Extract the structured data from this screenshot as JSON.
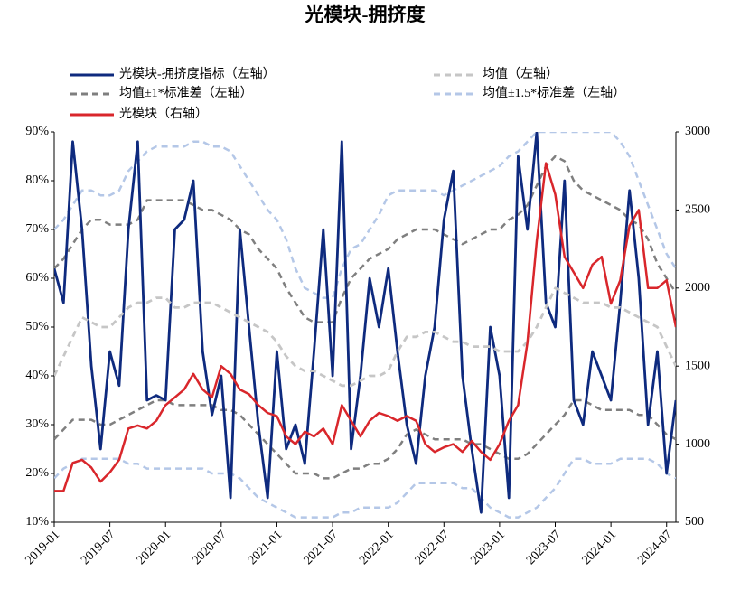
{
  "chart_data": {
    "type": "line",
    "title": "光模块-拥挤度",
    "x": [
      "2019-01",
      "2019-02",
      "2019-03",
      "2019-04",
      "2019-05",
      "2019-06",
      "2019-07",
      "2019-08",
      "2019-09",
      "2019-10",
      "2019-11",
      "2019-12",
      "2020-01",
      "2020-02",
      "2020-03",
      "2020-04",
      "2020-05",
      "2020-06",
      "2020-07",
      "2020-08",
      "2020-09",
      "2020-10",
      "2020-11",
      "2020-12",
      "2021-01",
      "2021-02",
      "2021-03",
      "2021-04",
      "2021-05",
      "2021-06",
      "2021-07",
      "2021-08",
      "2021-09",
      "2021-10",
      "2021-11",
      "2021-12",
      "2022-01",
      "2022-02",
      "2022-03",
      "2022-04",
      "2022-05",
      "2022-06",
      "2022-07",
      "2022-08",
      "2022-09",
      "2022-10",
      "2022-11",
      "2022-12",
      "2023-01",
      "2023-02",
      "2023-03",
      "2023-04",
      "2023-05",
      "2023-06",
      "2023-07",
      "2023-08",
      "2023-09",
      "2023-10",
      "2023-11",
      "2023-12",
      "2024-01",
      "2024-02",
      "2024-03",
      "2024-04",
      "2024-05",
      "2024-06",
      "2024-07",
      "2024-08"
    ],
    "xticks": [
      "2019-01",
      "2019-07",
      "2020-01",
      "2020-07",
      "2021-01",
      "2021-07",
      "2022-01",
      "2022-07",
      "2023-01",
      "2023-07",
      "2024-01",
      "2024-07"
    ],
    "ylim": [
      10,
      90
    ],
    "yticks": [
      {
        "value": 10,
        "label": "10%"
      },
      {
        "value": 20,
        "label": "20%"
      },
      {
        "value": 30,
        "label": "30%"
      },
      {
        "value": 40,
        "label": "40%"
      },
      {
        "value": 50,
        "label": "50%"
      },
      {
        "value": 60,
        "label": "60%"
      },
      {
        "value": 70,
        "label": "70%"
      },
      {
        "value": 80,
        "label": "80%"
      },
      {
        "value": 90,
        "label": "90%"
      }
    ],
    "y2lim": [
      500,
      3000
    ],
    "y2ticks": [
      500,
      1000,
      1500,
      2000,
      2500,
      3000
    ],
    "series": [
      {
        "name": "光模块-拥挤度指标（左轴）",
        "color": "#0e2a7e",
        "dash": "none",
        "values": [
          62,
          55,
          88,
          70,
          42,
          25,
          45,
          38,
          70,
          88,
          35,
          36,
          35,
          70,
          72,
          80,
          45,
          32,
          40,
          15,
          70,
          50,
          30,
          15,
          45,
          25,
          30,
          22,
          45,
          70,
          40,
          88,
          25,
          40,
          60,
          50,
          62,
          45,
          30,
          22,
          40,
          50,
          72,
          82,
          40,
          25,
          12,
          50,
          40,
          15,
          85,
          70,
          90,
          55,
          50,
          80,
          35,
          30,
          45,
          40,
          35,
          55,
          78,
          60,
          30,
          45,
          20,
          35
        ]
      },
      {
        "name": "均值（左轴）",
        "color": "#c6c6c6",
        "dash": "7 5",
        "values": [
          40,
          44,
          48,
          52,
          51,
          50,
          50,
          52,
          54,
          55,
          55,
          56,
          56,
          54,
          54,
          55,
          55,
          55,
          54,
          53,
          52,
          51,
          50,
          49,
          47,
          44,
          42,
          41,
          41,
          40,
          39,
          38,
          38,
          39,
          40,
          40,
          41,
          45,
          48,
          48,
          49,
          49,
          48,
          47,
          47,
          46,
          46,
          46,
          45,
          45,
          45,
          47,
          50,
          54,
          58,
          57,
          56,
          55,
          55,
          55,
          54,
          54,
          53,
          52,
          51,
          50,
          46,
          42
        ]
      },
      {
        "name": "光模块（右轴）",
        "color": "#d9262b",
        "dash": "none",
        "axis": "y2",
        "values": [
          700,
          700,
          880,
          900,
          850,
          760,
          820,
          900,
          1100,
          1120,
          1100,
          1150,
          1250,
          1300,
          1350,
          1450,
          1350,
          1300,
          1500,
          1450,
          1350,
          1320,
          1250,
          1200,
          1180,
          1050,
          1000,
          1080,
          1050,
          1100,
          1000,
          1250,
          1150,
          1050,
          1150,
          1200,
          1180,
          1150,
          1180,
          1150,
          1000,
          950,
          980,
          1000,
          950,
          1020,
          950,
          900,
          1000,
          1150,
          1250,
          1650,
          2300,
          2800,
          2600,
          2200,
          2100,
          2000,
          2150,
          2200,
          1900,
          2050,
          2400,
          2500,
          2000,
          2000,
          2050,
          1750
        ]
      }
    ],
    "bands": [
      {
        "name": "均值±1*标准差（左轴）",
        "color": "#7f7f7f",
        "dash": "7 5",
        "upper": [
          62,
          64,
          67,
          70,
          72,
          72,
          71,
          71,
          71,
          72,
          76,
          76,
          76,
          76,
          76,
          75,
          74,
          74,
          73,
          72,
          70,
          69,
          66,
          64,
          62,
          58,
          55,
          52,
          51,
          51,
          51,
          56,
          60,
          62,
          64,
          65,
          66,
          68,
          69,
          70,
          70,
          70,
          69,
          68,
          67,
          68,
          69,
          70,
          70,
          72,
          73,
          75,
          79,
          83,
          85,
          84,
          80,
          78,
          77,
          76,
          75,
          74,
          72,
          71,
          68,
          63,
          60,
          57
        ],
        "lower": [
          27,
          29,
          31,
          31,
          31,
          30,
          30,
          31,
          32,
          33,
          34,
          35,
          35,
          34,
          34,
          34,
          34,
          34,
          33,
          33,
          32,
          30,
          28,
          26,
          24,
          22,
          20,
          20,
          20,
          19,
          19,
          20,
          21,
          21,
          22,
          22,
          23,
          25,
          28,
          29,
          28,
          27,
          27,
          27,
          27,
          26,
          26,
          25,
          24,
          23,
          23,
          24,
          26,
          28,
          30,
          32,
          35,
          35,
          34,
          33,
          33,
          33,
          33,
          32,
          32,
          30,
          28,
          27
        ]
      },
      {
        "name": "均值±1.5*标准差（左轴）",
        "color": "#b4c7e7",
        "dash": "7 5",
        "upper": [
          70,
          72,
          75,
          78,
          78,
          77,
          77,
          78,
          82,
          84,
          86,
          87,
          87,
          87,
          87,
          88,
          88,
          87,
          87,
          86,
          83,
          80,
          77,
          74,
          72,
          68,
          62,
          58,
          57,
          56,
          56,
          62,
          66,
          67,
          70,
          73,
          77,
          78,
          78,
          78,
          78,
          78,
          77,
          78,
          79,
          80,
          81,
          82,
          83,
          85,
          86,
          88,
          90,
          90,
          90,
          90,
          90,
          90,
          90,
          90,
          90,
          88,
          85,
          80,
          75,
          70,
          65,
          62
        ],
        "lower": [
          19,
          21,
          22,
          23,
          23,
          23,
          23,
          23,
          22,
          22,
          21,
          21,
          21,
          21,
          21,
          21,
          21,
          20,
          20,
          20,
          19,
          17,
          15,
          14,
          13,
          12,
          11,
          11,
          11,
          11,
          11,
          12,
          12,
          13,
          13,
          13,
          13,
          14,
          16,
          18,
          18,
          18,
          18,
          18,
          17,
          17,
          15,
          13,
          12,
          11,
          11,
          12,
          13,
          15,
          17,
          20,
          23,
          23,
          22,
          22,
          22,
          23,
          23,
          23,
          23,
          22,
          20,
          19
        ]
      }
    ]
  }
}
